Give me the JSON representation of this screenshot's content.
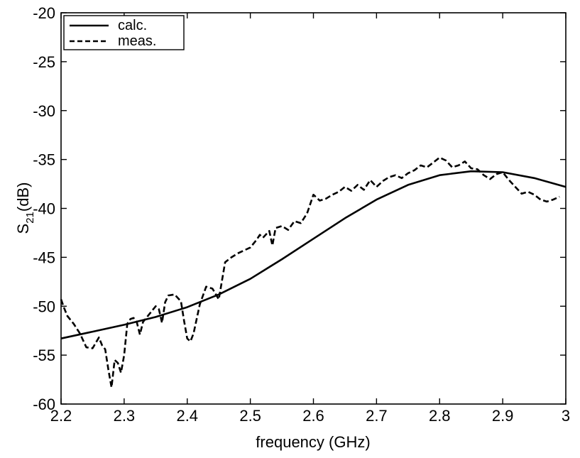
{
  "chart_data": {
    "type": "line",
    "title": "",
    "xlabel": "frequency (GHz)",
    "ylabel_main": "S",
    "ylabel_sub": "21",
    "ylabel_unit": "(dB)",
    "xlim": [
      2.2,
      3.0
    ],
    "ylim": [
      -60,
      -20
    ],
    "xticks": [
      2.2,
      2.3,
      2.4,
      2.5,
      2.6,
      2.7,
      2.8,
      2.9,
      3.0
    ],
    "xtick_labels": [
      "2.2",
      "2.3",
      "2.4",
      "2.5",
      "2.6",
      "2.7",
      "2.8",
      "2.9",
      "3"
    ],
    "yticks": [
      -60,
      -55,
      -50,
      -45,
      -40,
      -35,
      -30,
      -25,
      -20
    ],
    "ytick_labels": [
      "-60",
      "-55",
      "-50",
      "-45",
      "-40",
      "-35",
      "-30",
      "-25",
      "-20"
    ],
    "grid": false,
    "legend_position": "top-left",
    "series": [
      {
        "name": "calc.",
        "style": "solid",
        "color": "#000000",
        "x": [
          2.2,
          2.25,
          2.3,
          2.35,
          2.4,
          2.45,
          2.5,
          2.55,
          2.6,
          2.65,
          2.7,
          2.75,
          2.8,
          2.85,
          2.9,
          2.95,
          3.0
        ],
        "y": [
          -53.3,
          -52.6,
          -51.9,
          -51.1,
          -50.1,
          -48.8,
          -47.2,
          -45.2,
          -43.1,
          -41.0,
          -39.1,
          -37.6,
          -36.6,
          -36.2,
          -36.3,
          -36.9,
          -37.8
        ]
      },
      {
        "name": "meas.",
        "style": "dashed",
        "color": "#000000",
        "x": [
          2.2,
          2.205,
          2.21,
          2.22,
          2.23,
          2.24,
          2.25,
          2.26,
          2.265,
          2.27,
          2.275,
          2.28,
          2.285,
          2.29,
          2.295,
          2.3,
          2.305,
          2.31,
          2.315,
          2.32,
          2.325,
          2.33,
          2.34,
          2.35,
          2.355,
          2.36,
          2.365,
          2.37,
          2.38,
          2.39,
          2.395,
          2.4,
          2.405,
          2.41,
          2.42,
          2.43,
          2.44,
          2.45,
          2.46,
          2.47,
          2.48,
          2.49,
          2.5,
          2.51,
          2.515,
          2.52,
          2.53,
          2.535,
          2.54,
          2.55,
          2.56,
          2.57,
          2.58,
          2.59,
          2.6,
          2.61,
          2.62,
          2.63,
          2.64,
          2.65,
          2.66,
          2.67,
          2.68,
          2.69,
          2.7,
          2.71,
          2.72,
          2.73,
          2.74,
          2.75,
          2.76,
          2.77,
          2.78,
          2.79,
          2.8,
          2.81,
          2.82,
          2.83,
          2.84,
          2.85,
          2.86,
          2.87,
          2.88,
          2.89,
          2.9,
          2.91,
          2.92,
          2.93,
          2.94,
          2.95,
          2.96,
          2.97,
          2.98,
          2.99
        ],
        "y": [
          -49.3,
          -50.2,
          -51.0,
          -51.8,
          -52.8,
          -54.2,
          -54.3,
          -53.2,
          -54.0,
          -54.4,
          -56.5,
          -58.3,
          -55.5,
          -55.8,
          -56.8,
          -55.0,
          -51.8,
          -51.3,
          -51.2,
          -51.6,
          -52.9,
          -51.6,
          -50.8,
          -50.0,
          -50.3,
          -51.7,
          -49.6,
          -48.9,
          -48.8,
          -49.5,
          -51.5,
          -53.3,
          -53.6,
          -52.8,
          -49.8,
          -48.0,
          -48.2,
          -49.3,
          -45.5,
          -45.0,
          -44.6,
          -44.3,
          -44.0,
          -43.2,
          -42.7,
          -43.0,
          -42.3,
          -43.8,
          -42.0,
          -41.8,
          -42.2,
          -41.3,
          -41.5,
          -40.5,
          -38.6,
          -39.2,
          -39.0,
          -38.6,
          -38.3,
          -37.8,
          -38.2,
          -37.6,
          -38.1,
          -37.1,
          -37.8,
          -37.2,
          -36.8,
          -36.6,
          -36.9,
          -36.4,
          -36.1,
          -35.6,
          -35.8,
          -35.3,
          -34.8,
          -35.1,
          -35.8,
          -35.6,
          -35.2,
          -35.9,
          -36.0,
          -36.6,
          -37.0,
          -36.5,
          -36.3,
          -37.1,
          -37.8,
          -38.5,
          -38.3,
          -38.6,
          -39.1,
          -39.3,
          -39.1,
          -38.8
        ]
      }
    ]
  }
}
